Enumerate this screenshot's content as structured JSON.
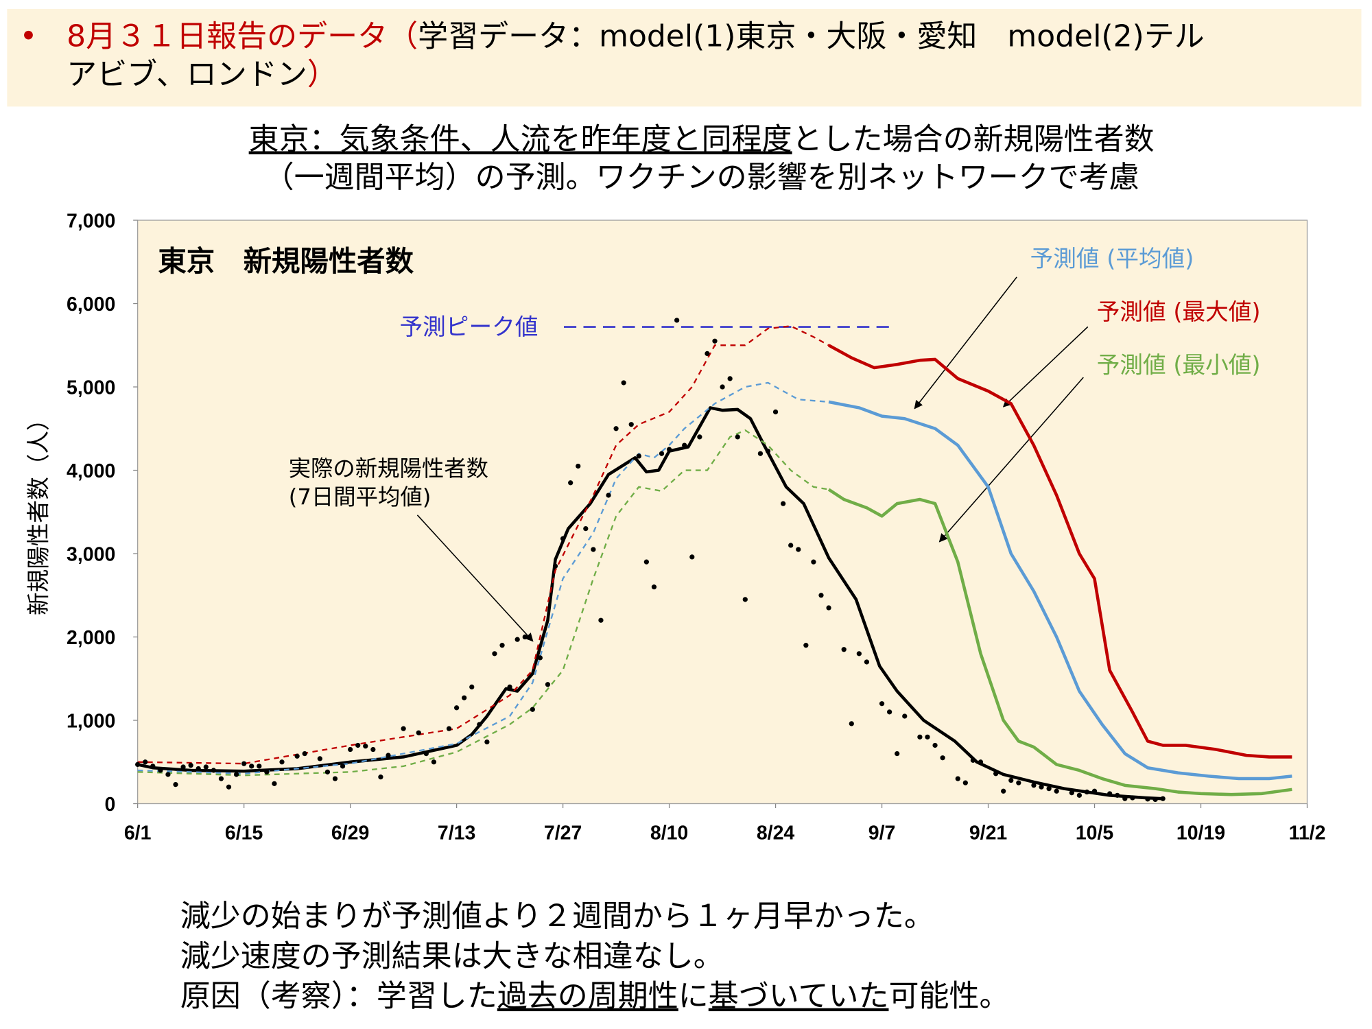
{
  "header": {
    "bullet": "•",
    "lines": [
      [
        {
          "text": "8月３１日報告のデータ（",
          "color": "#c00000"
        },
        {
          "text": "学習データ：model(1)東京・大阪・愛知　model(2)テル",
          "color": "#000000"
        }
      ],
      [
        {
          "text": "アビブ、ロンドン",
          "color": "#000000"
        },
        {
          "text": "）",
          "color": "#c00000"
        }
      ]
    ]
  },
  "chart_title": {
    "lines": [
      [
        {
          "text": "東京：気象条件、人流を昨年度と同程度",
          "underline": true
        },
        {
          "text": "とした場合の新規陽性者数"
        }
      ],
      [
        {
          "text": "（一週間平均）の予測。ワクチンの影響を別ネットワークで考慮"
        }
      ]
    ]
  },
  "chart_data": {
    "type": "line",
    "title": "東京　新規陽性者数",
    "y_label": "新規陽性者数（人）",
    "xlim": [
      0,
      154
    ],
    "xticks": [
      {
        "value": 0,
        "label": "6/1"
      },
      {
        "value": 14,
        "label": "6/15"
      },
      {
        "value": 28,
        "label": "6/29"
      },
      {
        "value": 42,
        "label": "7/13"
      },
      {
        "value": 56,
        "label": "7/27"
      },
      {
        "value": 70,
        "label": "8/10"
      },
      {
        "value": 84,
        "label": "8/24"
      },
      {
        "value": 98,
        "label": "9/7"
      },
      {
        "value": 112,
        "label": "9/21"
      },
      {
        "value": 126,
        "label": "10/5"
      },
      {
        "value": 140,
        "label": "10/19"
      },
      {
        "value": 154,
        "label": "11/2"
      }
    ],
    "ylim": [
      0,
      7000
    ],
    "yticks": [
      0,
      {
        "value": 1000,
        "label": "1,000"
      },
      {
        "value": 2000,
        "label": "2,000"
      },
      {
        "value": 3000,
        "label": "3,000"
      },
      {
        "value": 4000,
        "label": "4,000"
      },
      {
        "value": 5000,
        "label": "5,000"
      },
      {
        "value": 6000,
        "label": "6,000"
      },
      {
        "value": 7000,
        "label": "7,000"
      }
    ],
    "peak_label": "予測ピーク値",
    "peak_value": 5720,
    "peak_color": "#3333cc",
    "series": [
      {
        "name": "予測値 (平均値)",
        "color": "#5b9bd5",
        "style": "solid",
        "x": [
          91,
          95,
          98,
          101,
          105,
          108,
          112,
          115,
          118,
          121,
          124,
          127,
          130,
          133,
          137,
          141,
          145,
          149,
          152
        ],
        "values": [
          4820,
          4750,
          4650,
          4620,
          4500,
          4300,
          3800,
          3000,
          2550,
          2000,
          1350,
          950,
          600,
          430,
          370,
          330,
          300,
          300,
          330
        ]
      },
      {
        "name": "予測値 (最大値)",
        "color": "#c00000",
        "style": "solid",
        "x": [
          91,
          94,
          97,
          100,
          103,
          105,
          108,
          112,
          115,
          118,
          121,
          124,
          126,
          128,
          131,
          133,
          135,
          138,
          142,
          146,
          149,
          152
        ],
        "values": [
          5500,
          5350,
          5230,
          5270,
          5320,
          5330,
          5100,
          4950,
          4800,
          4300,
          3700,
          3000,
          2700,
          1600,
          1100,
          750,
          700,
          700,
          650,
          580,
          560,
          560
        ]
      },
      {
        "name": "予測値 (最小値)",
        "color": "#70ad47",
        "style": "solid",
        "x": [
          91,
          93,
          96,
          98,
          100,
          103,
          105,
          108,
          111,
          114,
          116,
          118,
          121,
          124,
          127,
          130,
          134,
          137,
          140,
          144,
          148,
          152
        ],
        "values": [
          3770,
          3650,
          3550,
          3450,
          3600,
          3650,
          3600,
          2900,
          1800,
          1000,
          750,
          680,
          470,
          400,
          300,
          220,
          180,
          140,
          120,
          110,
          120,
          170
        ]
      },
      {
        "name": [
          "実際の新規陽性者数",
          "(7日間平均値)"
        ],
        "color": "#000000",
        "style": "solid",
        "x": [
          0,
          2,
          7,
          14,
          21,
          28,
          35,
          42,
          44,
          46,
          48.5,
          50,
          52,
          54,
          55,
          56.7,
          59.6,
          62,
          65.5,
          67,
          68.6,
          70,
          72.5,
          75.4,
          77,
          79,
          80.7,
          82.5,
          85.4,
          87.7,
          91,
          94.6,
          97.7,
          100,
          103.5,
          107.6,
          110.5,
          114,
          118,
          122,
          128,
          132.7,
          135
        ],
        "values": [
          470,
          430,
          400,
          390,
          420,
          500,
          560,
          700,
          830,
          1050,
          1380,
          1350,
          1560,
          2200,
          2930,
          3300,
          3600,
          3950,
          4150,
          3980,
          4000,
          4230,
          4280,
          4750,
          4720,
          4730,
          4620,
          4300,
          3800,
          3600,
          2950,
          2450,
          1650,
          1350,
          1000,
          750,
          500,
          350,
          260,
          180,
          100,
          70,
          60
        ]
      },
      {
        "color": "#5b9bd5",
        "style": "dashed",
        "x": [
          0,
          14,
          28,
          42,
          49,
          52,
          56,
          60,
          63,
          66,
          68,
          70,
          72,
          76,
          80,
          83,
          87,
          91
        ],
        "values": [
          400,
          360,
          480,
          720,
          1050,
          1450,
          2700,
          3250,
          3900,
          4200,
          4150,
          4300,
          4500,
          4800,
          5000,
          5050,
          4850,
          4820
        ]
      },
      {
        "color": "#c00000",
        "style": "dashed",
        "x": [
          0,
          14,
          28,
          35,
          42,
          49,
          52,
          55,
          60,
          63,
          66,
          70,
          73,
          76,
          80,
          83,
          86,
          89,
          91
        ],
        "values": [
          500,
          480,
          700,
          800,
          900,
          1300,
          1600,
          2800,
          3700,
          4300,
          4550,
          4700,
          5000,
          5500,
          5500,
          5700,
          5730,
          5600,
          5500
        ]
      },
      {
        "color": "#70ad47",
        "style": "dashed",
        "x": [
          0,
          14,
          28,
          35,
          42,
          49,
          52,
          56,
          60,
          63,
          66,
          69,
          72,
          75,
          78,
          80,
          83,
          86,
          89,
          91
        ],
        "values": [
          380,
          340,
          380,
          450,
          620,
          950,
          1150,
          1600,
          2700,
          3450,
          3800,
          3750,
          4000,
          4000,
          4400,
          4480,
          4300,
          4000,
          3800,
          3770
        ]
      },
      {
        "color": "#000000",
        "style": "dots",
        "x": [
          0,
          1,
          2,
          3,
          4,
          5,
          6,
          7,
          8,
          9,
          10,
          11,
          12,
          13,
          14,
          15,
          16,
          17,
          18,
          19,
          21,
          22,
          24,
          25,
          26,
          27,
          28,
          29,
          30,
          31,
          32,
          33,
          35,
          37,
          38,
          39,
          41,
          42,
          43,
          44,
          45,
          46,
          47,
          48,
          49,
          50,
          51,
          52,
          53,
          54,
          55,
          56,
          57,
          58,
          59,
          60,
          61,
          62,
          63,
          64,
          65,
          66,
          67,
          68,
          69,
          70,
          71,
          72,
          73,
          74,
          75,
          76,
          77,
          78,
          79,
          80,
          82,
          83,
          84,
          85,
          86,
          87,
          88,
          89,
          90,
          91,
          93,
          94,
          95,
          96,
          98,
          99,
          100,
          101,
          103,
          104,
          105,
          106,
          108,
          109,
          110,
          111,
          113,
          114,
          115,
          116,
          118,
          119,
          120,
          121,
          123,
          124,
          125,
          126,
          128,
          129,
          130,
          131,
          133,
          134,
          135
        ],
        "values": [
          470,
          500,
          450,
          400,
          350,
          230,
          440,
          460,
          420,
          440,
          400,
          300,
          200,
          350,
          480,
          450,
          450,
          380,
          240,
          500,
          570,
          600,
          540,
          380,
          300,
          450,
          650,
          700,
          690,
          650,
          320,
          580,
          900,
          850,
          600,
          500,
          900,
          1150,
          1270,
          1400,
          950,
          740,
          1800,
          1900,
          1400,
          1970,
          2000,
          1130,
          1750,
          1430,
          2850,
          3180,
          3850,
          4050,
          3300,
          3050,
          2200,
          3700,
          4500,
          5050,
          4550,
          4170,
          2900,
          2600,
          4200,
          4250,
          5800,
          4300,
          2960,
          4400,
          5400,
          5550,
          5000,
          5100,
          4400,
          2450,
          4200,
          4230,
          4700,
          3600,
          3100,
          3050,
          1900,
          2900,
          2500,
          2350,
          1850,
          960,
          1800,
          1700,
          1200,
          1100,
          600,
          1050,
          800,
          800,
          700,
          550,
          300,
          250,
          520,
          500,
          360,
          150,
          280,
          250,
          220,
          200,
          180,
          150,
          130,
          100,
          140,
          150,
          120,
          100,
          60,
          70,
          55,
          50,
          60
        ]
      }
    ]
  },
  "notes": {
    "lines": [
      [
        {
          "text": "減少の始まりが予測値より２週間から１ヶ月早かった。"
        }
      ],
      [
        {
          "text": "減少速度の予測結果は大きな相違なし。"
        }
      ],
      [
        {
          "text": "原因（考察）：学習した"
        },
        {
          "text": "過去の周期性",
          "underline": true
        },
        {
          "text": "に"
        },
        {
          "text": "基づいていた",
          "underline": true
        },
        {
          "text": "可能性。"
        }
      ]
    ]
  }
}
